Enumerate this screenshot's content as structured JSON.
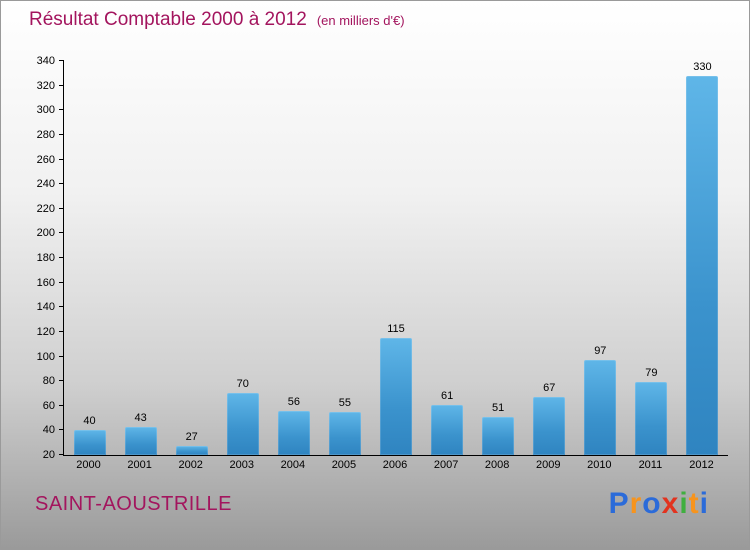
{
  "header": {
    "title": "Résultat Comptable 2000 à 2012",
    "subtitle": "(en milliers d'€)"
  },
  "footer": {
    "name": "SAINT-AOUSTRILLE",
    "logo_letters": [
      {
        "ch": "P",
        "color": "#2b6bd9"
      },
      {
        "ch": "r",
        "color": "#f7941d"
      },
      {
        "ch": "o",
        "color": "#2b6bd9"
      },
      {
        "ch": "x",
        "color": "#e2331f"
      },
      {
        "ch": "i",
        "color": "#3faf3f"
      },
      {
        "ch": "t",
        "color": "#f7941d"
      },
      {
        "ch": "i",
        "color": "#2b6bd9"
      }
    ]
  },
  "chart_data": {
    "type": "bar",
    "title": "Résultat Comptable 2000 à 2012",
    "subtitle": "(en milliers d'€)",
    "categories": [
      "2000",
      "2001",
      "2002",
      "2003",
      "2004",
      "2005",
      "2006",
      "2007",
      "2008",
      "2009",
      "2010",
      "2011",
      "2012"
    ],
    "values": [
      40,
      43,
      27,
      70,
      56,
      55,
      115,
      61,
      51,
      67,
      97,
      79,
      330
    ],
    "xlabel": "",
    "ylabel": "",
    "ylim": [
      20,
      340
    ],
    "ytick_step": 20,
    "grid": false,
    "legend": "none",
    "bar_color_top": "#5fb6e8",
    "bar_color_bottom": "#2f84c0"
  }
}
